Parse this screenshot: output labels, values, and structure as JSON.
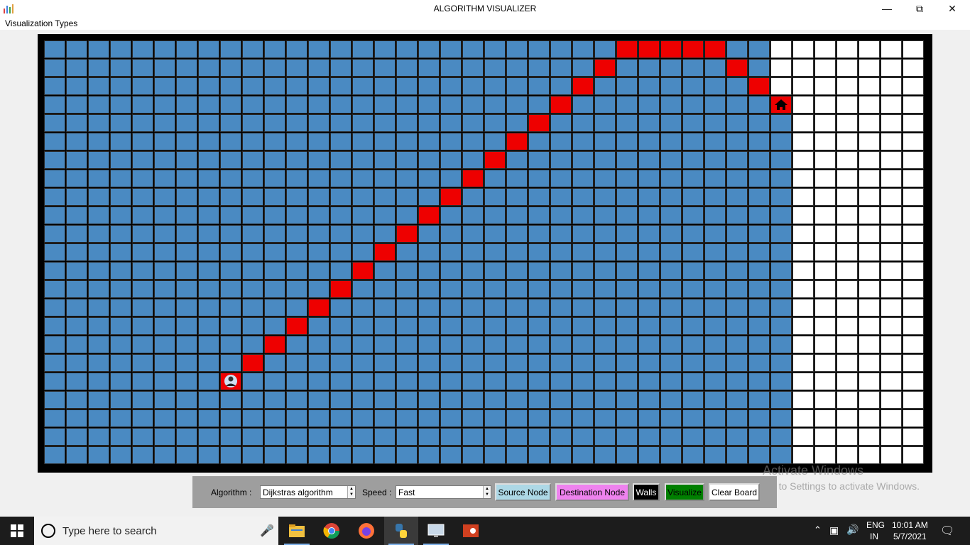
{
  "window": {
    "title": "ALGORITHM VISUALIZER"
  },
  "menu": {
    "visualization_types": "Visualization Types"
  },
  "controls": {
    "algorithm_label": "Algorithm :",
    "algorithm_value": "Dijkstras algorithm",
    "speed_label": "Speed :",
    "speed_value": "Fast",
    "source_button": "Source Node",
    "destination_button": "Destination Node",
    "walls_button": "Walls",
    "visualize_button": "Visualize",
    "clear_button": "Clear Board"
  },
  "grid": {
    "cols": 40,
    "rows": 23,
    "visited_cols": 34,
    "visited_cols_by_row": {
      "0": 33,
      "1": 33,
      "2": 33
    },
    "path": [
      [
        0,
        26
      ],
      [
        0,
        27
      ],
      [
        0,
        28
      ],
      [
        0,
        29
      ],
      [
        0,
        30
      ],
      [
        1,
        25
      ],
      [
        1,
        31
      ],
      [
        2,
        24
      ],
      [
        2,
        32
      ],
      [
        3,
        23
      ],
      [
        4,
        22
      ],
      [
        5,
        21
      ],
      [
        6,
        20
      ],
      [
        7,
        19
      ],
      [
        8,
        18
      ],
      [
        9,
        17
      ],
      [
        10,
        16
      ],
      [
        11,
        15
      ],
      [
        12,
        14
      ],
      [
        13,
        13
      ],
      [
        14,
        12
      ],
      [
        15,
        11
      ],
      [
        16,
        10
      ],
      [
        17,
        9
      ]
    ],
    "source": [
      18,
      8
    ],
    "destination": [
      3,
      33
    ],
    "colors": {
      "visited": "#4a8ac2",
      "path": "#ee0000",
      "empty": "#ffffff",
      "board_border": "#000000"
    }
  },
  "watermark": {
    "line1": "Activate Windows",
    "line2": "Go to Settings to activate Windows."
  },
  "taskbar": {
    "search_placeholder": "Type here to search",
    "lang": "ENG",
    "region": "IN",
    "time": "10:01 AM",
    "date": "5/7/2021"
  }
}
